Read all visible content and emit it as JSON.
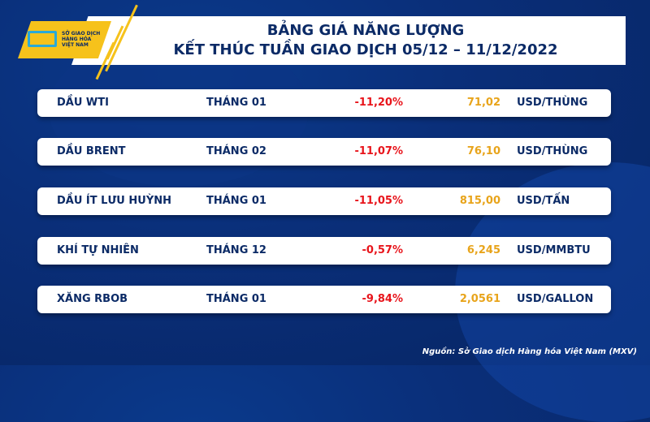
{
  "header": {
    "title_line1": "BẢNG GIÁ NĂNG LƯỢNG",
    "title_line2": "KẾT THÚC TUẦN GIAO DỊCH 05/12 – 11/12/2022"
  },
  "logo": {
    "text_lines": [
      "SỞ GIAO DỊCH",
      "HÀNG HÓA",
      "VIỆT NAM"
    ]
  },
  "colors": {
    "navy": "#0b2a66",
    "negative": "#e8141b",
    "price": "#e8a41b",
    "accent": "#f6c21b"
  },
  "rows": [
    {
      "name": "DẦU WTI",
      "month": "THÁNG 01",
      "change": "-11,20%",
      "price": "71,02",
      "unit": "USD/THÙNG"
    },
    {
      "name": "DẦU BRENT",
      "month": "THÁNG 02",
      "change": "-11,07%",
      "price": "76,10",
      "unit": "USD/THÙNG"
    },
    {
      "name": "DẦU ÍT LƯU HUỲNH",
      "month": "THÁNG 01",
      "change": "-11,05%",
      "price": "815,00",
      "unit": "USD/TẤN"
    },
    {
      "name": "KHÍ TỰ NHIÊN",
      "month": "THÁNG 12",
      "change": "-0,57%",
      "price": "6,245",
      "unit": "USD/MMBTU"
    },
    {
      "name": "XĂNG RBOB",
      "month": "THÁNG 01",
      "change": "-9,84%",
      "price": "2,0561",
      "unit": "USD/GALLON"
    }
  ],
  "source": "Nguồn: Sở Giao dịch Hàng hóa Việt Nam (MXV)"
}
